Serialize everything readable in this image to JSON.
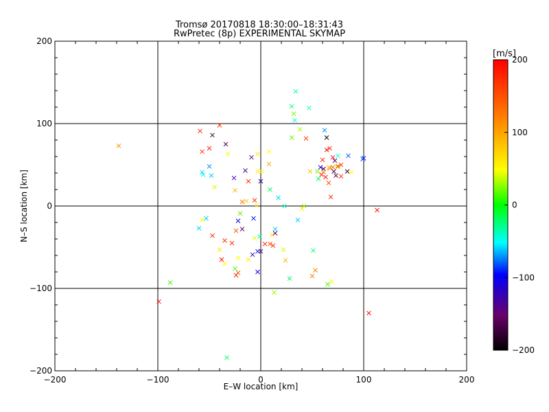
{
  "chart_data": {
    "type": "scatter",
    "title_line1": "Tromsø 20170818 18:30:00–18:31:43",
    "title_line2": "RwPretec (8p) EXPERIMENTAL SKYMAP",
    "xlabel": "E–W location [km]",
    "ylabel": "N–S location [km]",
    "xlim": [
      -200,
      200
    ],
    "ylim": [
      -200,
      200
    ],
    "x_ticks": [
      -200,
      -100,
      0,
      100,
      200
    ],
    "y_ticks": [
      -200,
      -100,
      0,
      100,
      200
    ],
    "x_tick_labels": [
      "−200",
      "−100",
      "0",
      "100",
      "200"
    ],
    "y_tick_labels": [
      "−200",
      "−100",
      "0",
      "100",
      "200"
    ],
    "grid": true,
    "colorbar": {
      "label": "[m/s]",
      "range": [
        -200,
        200
      ],
      "tick_values": [
        -200,
        -100,
        0,
        100,
        200
      ],
      "tick_labels": [
        "−200",
        "−100",
        "0",
        "100",
        "200"
      ],
      "colors": [
        "#000000",
        "#6a006a",
        "#0000ff",
        "#00ffff",
        "#00ff00",
        "#ffff00",
        "#ff8000",
        "#ff0000"
      ]
    },
    "crosses": [
      [
        -138,
        73,
        110
      ],
      [
        -99,
        -116,
        190
      ],
      [
        -88,
        -93,
        10
      ],
      [
        -59,
        91,
        180
      ],
      [
        -57,
        66,
        170
      ],
      [
        -50,
        70,
        180
      ],
      [
        -47,
        86,
        -180
      ],
      [
        -40,
        98,
        170
      ],
      [
        -34,
        75,
        -160
      ],
      [
        -56,
        38,
        -50
      ],
      [
        -50,
        48,
        -70
      ],
      [
        -48,
        37,
        -60
      ],
      [
        -53,
        -15,
        -60
      ],
      [
        -60,
        -27,
        -60
      ],
      [
        -57,
        -17,
        50
      ],
      [
        -47,
        -36,
        180
      ],
      [
        -38,
        -65,
        190
      ],
      [
        -35,
        -42,
        170
      ],
      [
        -28,
        -45,
        170
      ],
      [
        -24,
        -30,
        140
      ],
      [
        -35,
        -70,
        50
      ],
      [
        -25,
        -76,
        10
      ],
      [
        -24,
        -84,
        190
      ],
      [
        -22,
        -81,
        150
      ],
      [
        -20,
        -9,
        140
      ],
      [
        -12,
        -65,
        60
      ],
      [
        -3,
        -55,
        -90
      ],
      [
        -8,
        -59,
        -120
      ],
      [
        -22,
        -18,
        -110
      ],
      [
        -18,
        -28,
        -150
      ],
      [
        -15,
        43,
        -140
      ],
      [
        -26,
        34,
        -120
      ],
      [
        -25,
        19,
        90
      ],
      [
        -12,
        30,
        170
      ],
      [
        -9,
        59,
        -150
      ],
      [
        -3,
        42,
        60
      ],
      [
        -22,
        -63,
        50
      ],
      [
        -40,
        -53,
        60
      ],
      [
        -32,
        63,
        50
      ],
      [
        -45,
        23,
        40
      ],
      [
        -3,
        -80,
        -100
      ],
      [
        0,
        -55,
        -150
      ],
      [
        -7,
        -15,
        -90
      ],
      [
        -1,
        -37,
        -30
      ],
      [
        0,
        30,
        -130
      ],
      [
        1,
        42,
        50
      ],
      [
        -4,
        1,
        60
      ],
      [
        8,
        51,
        100
      ],
      [
        -3,
        63,
        60
      ],
      [
        8,
        66,
        50
      ],
      [
        14,
        -28,
        -60
      ],
      [
        9,
        -46,
        160
      ],
      [
        22,
        -53,
        40
      ],
      [
        24,
        -66,
        90
      ],
      [
        28,
        -88,
        -20
      ],
      [
        36,
        -17,
        -60
      ],
      [
        40,
        -3,
        60
      ],
      [
        12,
        -48,
        160
      ],
      [
        13,
        -105,
        30
      ],
      [
        30,
        83,
        20
      ],
      [
        30,
        121,
        -20
      ],
      [
        33,
        104,
        -40
      ],
      [
        34,
        139,
        -30
      ],
      [
        38,
        93,
        30
      ],
      [
        47,
        119,
        -40
      ],
      [
        32,
        112,
        20
      ],
      [
        42,
        0,
        30
      ],
      [
        51,
        -54,
        -20
      ],
      [
        48,
        42,
        80
      ],
      [
        56,
        33,
        -20
      ],
      [
        58,
        47,
        -120
      ],
      [
        50,
        -85,
        120
      ],
      [
        53,
        -78,
        120
      ],
      [
        44,
        82,
        160
      ],
      [
        60,
        56,
        190
      ],
      [
        63,
        35,
        180
      ],
      [
        64,
        68,
        190
      ],
      [
        66,
        28,
        150
      ],
      [
        67,
        46,
        170
      ],
      [
        70,
        59,
        190
      ],
      [
        70,
        47,
        130
      ],
      [
        71,
        42,
        -170
      ],
      [
        72,
        55,
        -140
      ],
      [
        75,
        61,
        -40
      ],
      [
        74,
        48,
        40
      ],
      [
        78,
        36,
        170
      ],
      [
        78,
        50,
        160
      ],
      [
        64,
        83,
        -200
      ],
      [
        61,
        45,
        -170
      ],
      [
        55,
        42,
        20
      ],
      [
        61,
        41,
        120
      ],
      [
        67,
        70,
        170
      ],
      [
        84,
        42,
        -180
      ],
      [
        85,
        61,
        -80
      ],
      [
        88,
        41,
        50
      ],
      [
        99,
        57,
        -80
      ],
      [
        100,
        58,
        -90
      ],
      [
        68,
        11,
        180
      ],
      [
        75,
        48,
        160
      ],
      [
        59,
        38,
        180
      ],
      [
        62,
        92,
        -70
      ],
      [
        69,
        -92,
        50
      ],
      [
        65,
        -95,
        10
      ],
      [
        105,
        -130,
        190
      ],
      [
        113,
        -5,
        190
      ],
      [
        -33,
        -184,
        -20
      ],
      [
        -57,
        41,
        -60
      ],
      [
        66,
        47,
        80
      ],
      [
        73,
        37,
        -160
      ],
      [
        -18,
        5,
        130
      ],
      [
        -6,
        7,
        170
      ],
      [
        9,
        20,
        -20
      ],
      [
        14,
        -33,
        -150
      ],
      [
        17,
        10,
        -60
      ],
      [
        -6,
        -39,
        40
      ],
      [
        11,
        -35,
        60
      ],
      [
        -20,
        -9,
        20
      ],
      [
        -14,
        6,
        80
      ],
      [
        4,
        -46,
        180
      ],
      [
        23,
        0,
        -40
      ]
    ]
  }
}
